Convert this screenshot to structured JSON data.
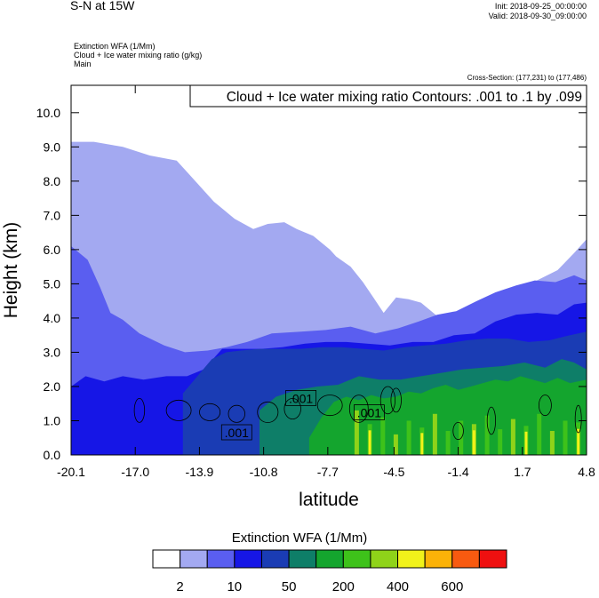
{
  "header": {
    "title": "S-N at 15W",
    "init": "Init: 2018-09-25_00:00:00",
    "valid": "Valid: 2018-09-30_09:00:00",
    "fields": [
      "Extinction WFA   (1/Mm)",
      "Cloud + Ice water mixing ratio   (g/kg)",
      "Main"
    ],
    "cross_section": "Cross-Section: (177,231) to (177,486)",
    "contour_info": "Cloud + Ice water mixing ratio Contours: .001 to .1 by .099"
  },
  "chart_data": {
    "type": "heatmap",
    "xlabel": "latitude",
    "ylabel": "Height (km)",
    "xlim": [
      -20.1,
      4.8
    ],
    "ylim": [
      0.0,
      10.8
    ],
    "x_ticks": [
      "-20.1",
      "-17.0",
      "-13.9",
      "-10.8",
      "-7.7",
      "-4.5",
      "-1.4",
      "1.7",
      "4.8"
    ],
    "y_ticks": [
      "0.0",
      "1.0",
      "2.0",
      "3.0",
      "4.0",
      "5.0",
      "6.0",
      "7.0",
      "8.0",
      "9.0",
      "10.0"
    ],
    "x_tick_values": [
      -20.1,
      -17.0,
      -13.9,
      -10.8,
      -7.7,
      -4.5,
      -1.4,
      1.7,
      4.8
    ],
    "y_tick_values": [
      0,
      1,
      2,
      3,
      4,
      5,
      6,
      7,
      8,
      9,
      10
    ],
    "colorbar": {
      "title": "Extinction WFA  (1/Mm)",
      "colors": [
        "#ffffff",
        "#a3a9f1",
        "#5a5ef0",
        "#1616e6",
        "#1a3cb4",
        "#0e7e68",
        "#14a52e",
        "#3ec21a",
        "#8fd319",
        "#f1f21a",
        "#fbb208",
        "#f85a10",
        "#ef1010"
      ],
      "labels": [
        "2",
        "10",
        "50",
        "200",
        "400",
        "600"
      ]
    },
    "layers": [
      {
        "level": "2",
        "color": "#a3a9f1",
        "x": [
          -20.1,
          -19.0,
          -17.6,
          -16.3,
          -15.0,
          -14.4,
          -13.2,
          -12.2,
          -11.3,
          -10.6,
          -9.8,
          -9.2,
          -8.4,
          -7.6,
          -7.3,
          -6.6,
          -6.0,
          -5.5,
          -5.0,
          -4.4,
          -3.8,
          -3.2,
          -2.5,
          -1.9,
          -1.2,
          -0.5,
          0.4,
          1.4,
          2.4,
          3.4,
          4.2,
          4.8
        ],
        "top": [
          9.15,
          9.15,
          9.0,
          8.75,
          8.6,
          8.2,
          7.4,
          6.9,
          6.6,
          6.75,
          6.8,
          6.6,
          6.4,
          6.0,
          5.8,
          5.5,
          5.05,
          4.6,
          4.15,
          4.6,
          4.55,
          4.45,
          4.1,
          4.0,
          3.7,
          3.6,
          4.3,
          4.8,
          5.1,
          5.4,
          5.9,
          6.3
        ]
      },
      {
        "level": "10",
        "color": "#5a5ef0",
        "x": [
          -20.1,
          -19.3,
          -18.7,
          -18.2,
          -17.6,
          -16.8,
          -15.6,
          -14.6,
          -13.5,
          -12.6,
          -11.6,
          -10.4,
          -9.0,
          -7.8,
          -6.6,
          -5.4,
          -4.3,
          -3.3,
          -2.4,
          -1.5,
          -0.5,
          0.4,
          1.4,
          2.3,
          3.3,
          4.2,
          4.8
        ],
        "top": [
          6.1,
          5.7,
          4.9,
          4.15,
          3.95,
          3.55,
          3.2,
          3.0,
          3.05,
          3.15,
          3.3,
          3.55,
          3.6,
          3.65,
          3.75,
          3.55,
          3.7,
          3.9,
          4.1,
          4.2,
          4.5,
          4.75,
          4.95,
          5.1,
          5.05,
          5.25,
          5.1
        ]
      },
      {
        "level": "50",
        "color": "#1616e6",
        "x": [
          -20.1,
          -19.4,
          -18.5,
          -17.6,
          -16.6,
          -15.5,
          -14.5,
          -13.7,
          -12.8,
          -11.9,
          -10.9,
          -9.9,
          -8.8,
          -7.8,
          -6.8,
          -5.8,
          -4.7,
          -3.6,
          -2.6,
          -1.6,
          -0.6,
          0.4,
          1.4,
          2.4,
          3.4,
          4.2,
          4.8
        ],
        "top": [
          2.0,
          2.3,
          2.15,
          2.3,
          2.2,
          2.3,
          2.3,
          2.5,
          3.1,
          3.1,
          3.1,
          3.15,
          3.25,
          3.3,
          3.3,
          3.25,
          3.2,
          3.3,
          3.3,
          3.5,
          3.55,
          3.9,
          4.1,
          4.15,
          4.1,
          4.4,
          4.45
        ]
      },
      {
        "level": "200",
        "color": "#1a3cb4",
        "x": [
          -14.7,
          -14.0,
          -13.3,
          -12.6,
          -11.9,
          -11.0,
          -10.0,
          -9.0,
          -8.0,
          -7.0,
          -6.0,
          -5.0,
          -4.0,
          -3.0,
          -2.0,
          -1.0,
          0.0,
          1.0,
          2.0,
          3.0,
          4.0,
          4.8
        ],
        "top": [
          1.8,
          2.3,
          2.8,
          3.0,
          3.05,
          3.1,
          3.1,
          3.1,
          3.15,
          3.15,
          3.1,
          3.05,
          3.15,
          3.2,
          3.25,
          3.35,
          3.4,
          3.4,
          3.3,
          3.35,
          3.5,
          3.6
        ]
      },
      {
        "level": "400",
        "color": "#0e7e68",
        "x": [
          -11.0,
          -10.2,
          -9.2,
          -8.2,
          -7.2,
          -6.2,
          -5.2,
          -4.2,
          -3.2,
          -2.2,
          -1.2,
          -0.2,
          0.8,
          1.8,
          2.8,
          3.6,
          4.2,
          4.8
        ],
        "top": [
          1.3,
          1.7,
          1.9,
          2.0,
          2.05,
          2.3,
          2.2,
          2.2,
          2.3,
          2.4,
          2.5,
          2.55,
          2.6,
          2.7,
          2.55,
          2.8,
          2.7,
          2.5
        ]
      },
      {
        "level": "600",
        "color": "#14a52e",
        "x": [
          -8.6,
          -8.0,
          -7.4,
          -6.8,
          -6.2,
          -5.6,
          -5.0,
          -4.4,
          -3.8,
          -3.2,
          -2.6,
          -2.0,
          -1.4,
          -0.8,
          -0.2,
          0.4,
          1.0,
          1.6,
          2.2,
          2.8,
          3.4,
          4.0,
          4.8
        ],
        "top": [
          0.5,
          1.1,
          1.55,
          1.7,
          1.6,
          1.75,
          1.65,
          1.7,
          1.85,
          1.8,
          1.95,
          2.05,
          1.9,
          2.0,
          2.1,
          2.2,
          2.15,
          2.3,
          2.2,
          2.1,
          2.25,
          2.1,
          2.2
        ]
      }
    ],
    "streak_values_km": [
      1.3,
      0.9,
      1.1,
      0.6,
      1.0,
      0.8,
      1.2,
      0.7,
      1.0,
      0.9,
      1.15,
      0.75,
      1.05,
      0.85,
      1.2,
      0.7,
      1.0,
      0.95
    ],
    "contour_labels": [
      ".001",
      ".001",
      ".001"
    ]
  }
}
